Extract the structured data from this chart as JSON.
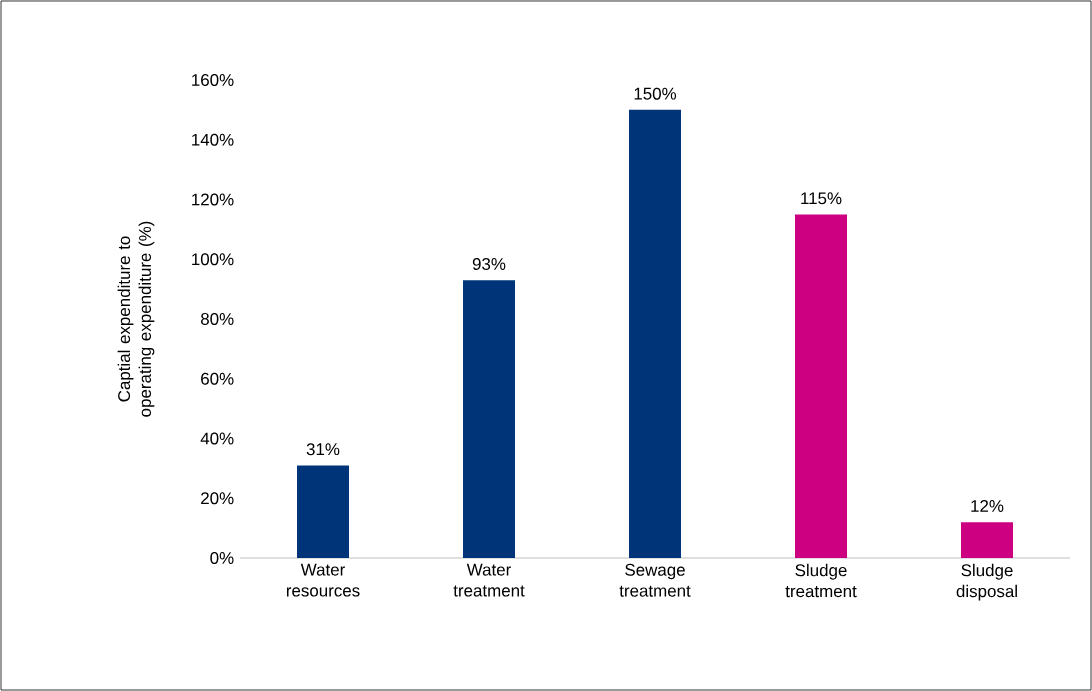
{
  "chart_data": {
    "type": "bar",
    "ylabel": "Captial expenditure to operating expenditure (%)",
    "categories": [
      "Water resources",
      "Water treatment",
      "Sewage treatment",
      "Sludge treatment",
      "Sludge disposal"
    ],
    "values": [
      31,
      93,
      150,
      115,
      12
    ],
    "colors": [
      "#003478",
      "#003478",
      "#003478",
      "#cc0080",
      "#cc0080"
    ],
    "value_labels": [
      "31%",
      "93%",
      "150%",
      "115%",
      "12%"
    ],
    "ylim": [
      0,
      160
    ],
    "yticks": [
      {
        "value": 0,
        "label": "0%"
      },
      {
        "value": 20,
        "label": "20%"
      },
      {
        "value": 40,
        "label": "40%"
      },
      {
        "value": 60,
        "label": "60%"
      },
      {
        "value": 80,
        "label": "80%"
      },
      {
        "value": 100,
        "label": "100%"
      },
      {
        "value": 120,
        "label": "120%"
      },
      {
        "value": 140,
        "label": "140%"
      },
      {
        "value": 160,
        "label": "160%"
      }
    ],
    "grid": false
  }
}
